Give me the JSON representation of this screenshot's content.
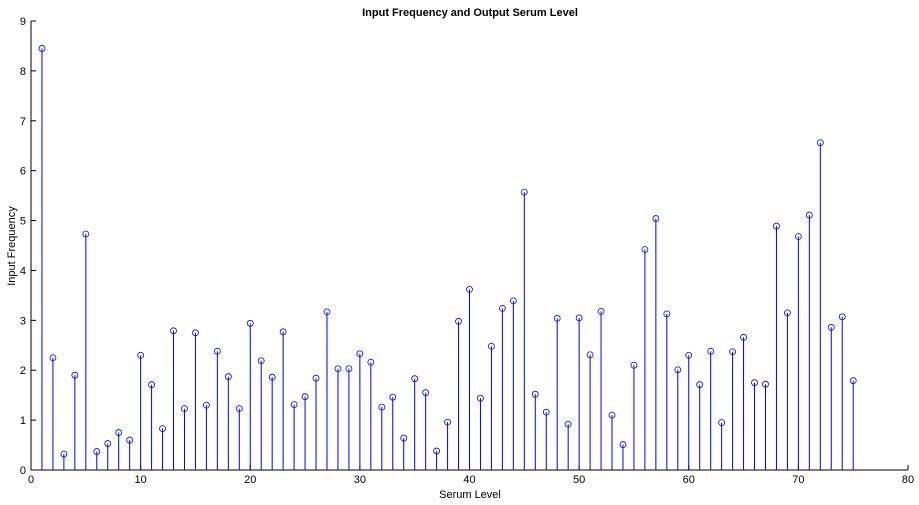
{
  "chart_data": {
    "type": "stem",
    "title": "Input Frequency and Output Serum Level",
    "xlabel": "Serum Level",
    "ylabel": "Input Frequency",
    "xlim": [
      0,
      80
    ],
    "ylim": [
      0,
      9
    ],
    "xticks": [
      "0",
      "10",
      "20",
      "30",
      "40",
      "50",
      "60",
      "70",
      "80"
    ],
    "yticks": [
      "0",
      "1",
      "2",
      "3",
      "4",
      "5",
      "6",
      "7",
      "8",
      "9"
    ],
    "color": "#0000ff",
    "grid": false,
    "x": [
      1,
      2,
      3,
      4,
      5,
      6,
      7,
      8,
      9,
      10,
      11,
      12,
      13,
      14,
      15,
      16,
      17,
      18,
      19,
      20,
      21,
      22,
      23,
      24,
      25,
      26,
      27,
      28,
      29,
      30,
      31,
      32,
      33,
      34,
      35,
      36,
      37,
      38,
      39,
      40,
      41,
      42,
      43,
      44,
      45,
      46,
      47,
      48,
      49,
      50,
      51,
      52,
      53,
      54,
      55,
      56,
      57,
      58,
      59,
      60,
      61,
      62,
      63,
      64,
      65,
      66,
      67,
      68,
      69,
      70,
      71,
      72,
      73,
      74,
      75
    ],
    "values": [
      8.45,
      2.25,
      0.32,
      1.9,
      4.73,
      0.37,
      0.53,
      0.75,
      0.6,
      2.3,
      1.71,
      0.83,
      2.79,
      1.23,
      2.75,
      1.3,
      2.38,
      1.87,
      1.23,
      2.94,
      2.19,
      1.86,
      2.77,
      1.31,
      1.47,
      1.84,
      3.17,
      2.03,
      2.03,
      2.33,
      2.16,
      1.26,
      1.46,
      0.64,
      1.83,
      1.55,
      0.38,
      0.96,
      2.98,
      3.62,
      1.44,
      2.48,
      3.24,
      3.39,
      5.57,
      1.52,
      1.16,
      3.04,
      0.92,
      3.05,
      2.31,
      3.18,
      1.1,
      0.51,
      2.1,
      4.42,
      5.04,
      3.13,
      2.01,
      2.3,
      1.71,
      2.38,
      0.95,
      2.37,
      2.66,
      1.75,
      1.72,
      4.89,
      3.15,
      4.68,
      5.11,
      6.56,
      2.86,
      3.07,
      1.79
    ]
  }
}
